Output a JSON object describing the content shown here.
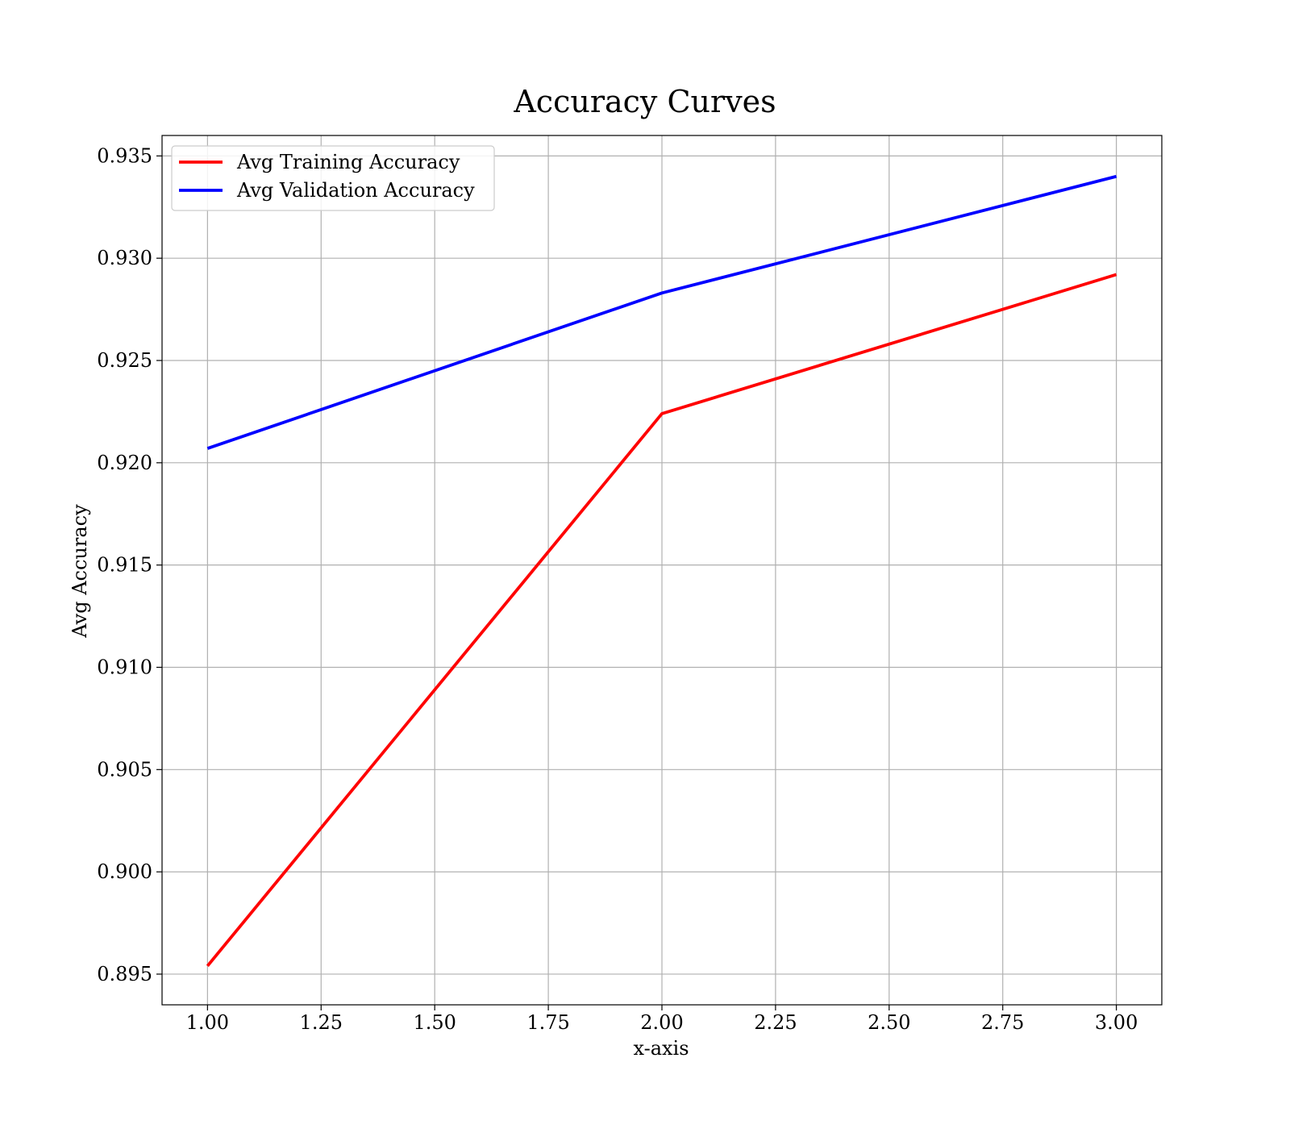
{
  "chart_data": {
    "type": "line",
    "title": "Accuracy Curves",
    "xlabel": "x-axis",
    "ylabel": "Avg Accuracy",
    "x": [
      1.0,
      2.0,
      3.0
    ],
    "xlim": [
      0.9,
      3.1
    ],
    "ylim": [
      0.8935,
      0.936
    ],
    "xticks": [
      1.0,
      1.25,
      1.5,
      1.75,
      2.0,
      2.25,
      2.5,
      2.75,
      3.0
    ],
    "xtick_labels": [
      "1.00",
      "1.25",
      "1.50",
      "1.75",
      "2.00",
      "2.25",
      "2.50",
      "2.75",
      "3.00"
    ],
    "yticks": [
      0.895,
      0.9,
      0.905,
      0.91,
      0.915,
      0.92,
      0.925,
      0.93,
      0.935
    ],
    "ytick_labels": [
      "0.895",
      "0.900",
      "0.905",
      "0.910",
      "0.915",
      "0.920",
      "0.925",
      "0.930",
      "0.935"
    ],
    "grid": true,
    "legend_position": "top-left",
    "series": [
      {
        "name": "Avg Training Accuracy",
        "color": "#ff0000",
        "values": [
          0.8954,
          0.9224,
          0.9292
        ]
      },
      {
        "name": "Avg Validation Accuracy",
        "color": "#0000ff",
        "values": [
          0.9207,
          0.9283,
          0.934
        ]
      }
    ]
  }
}
